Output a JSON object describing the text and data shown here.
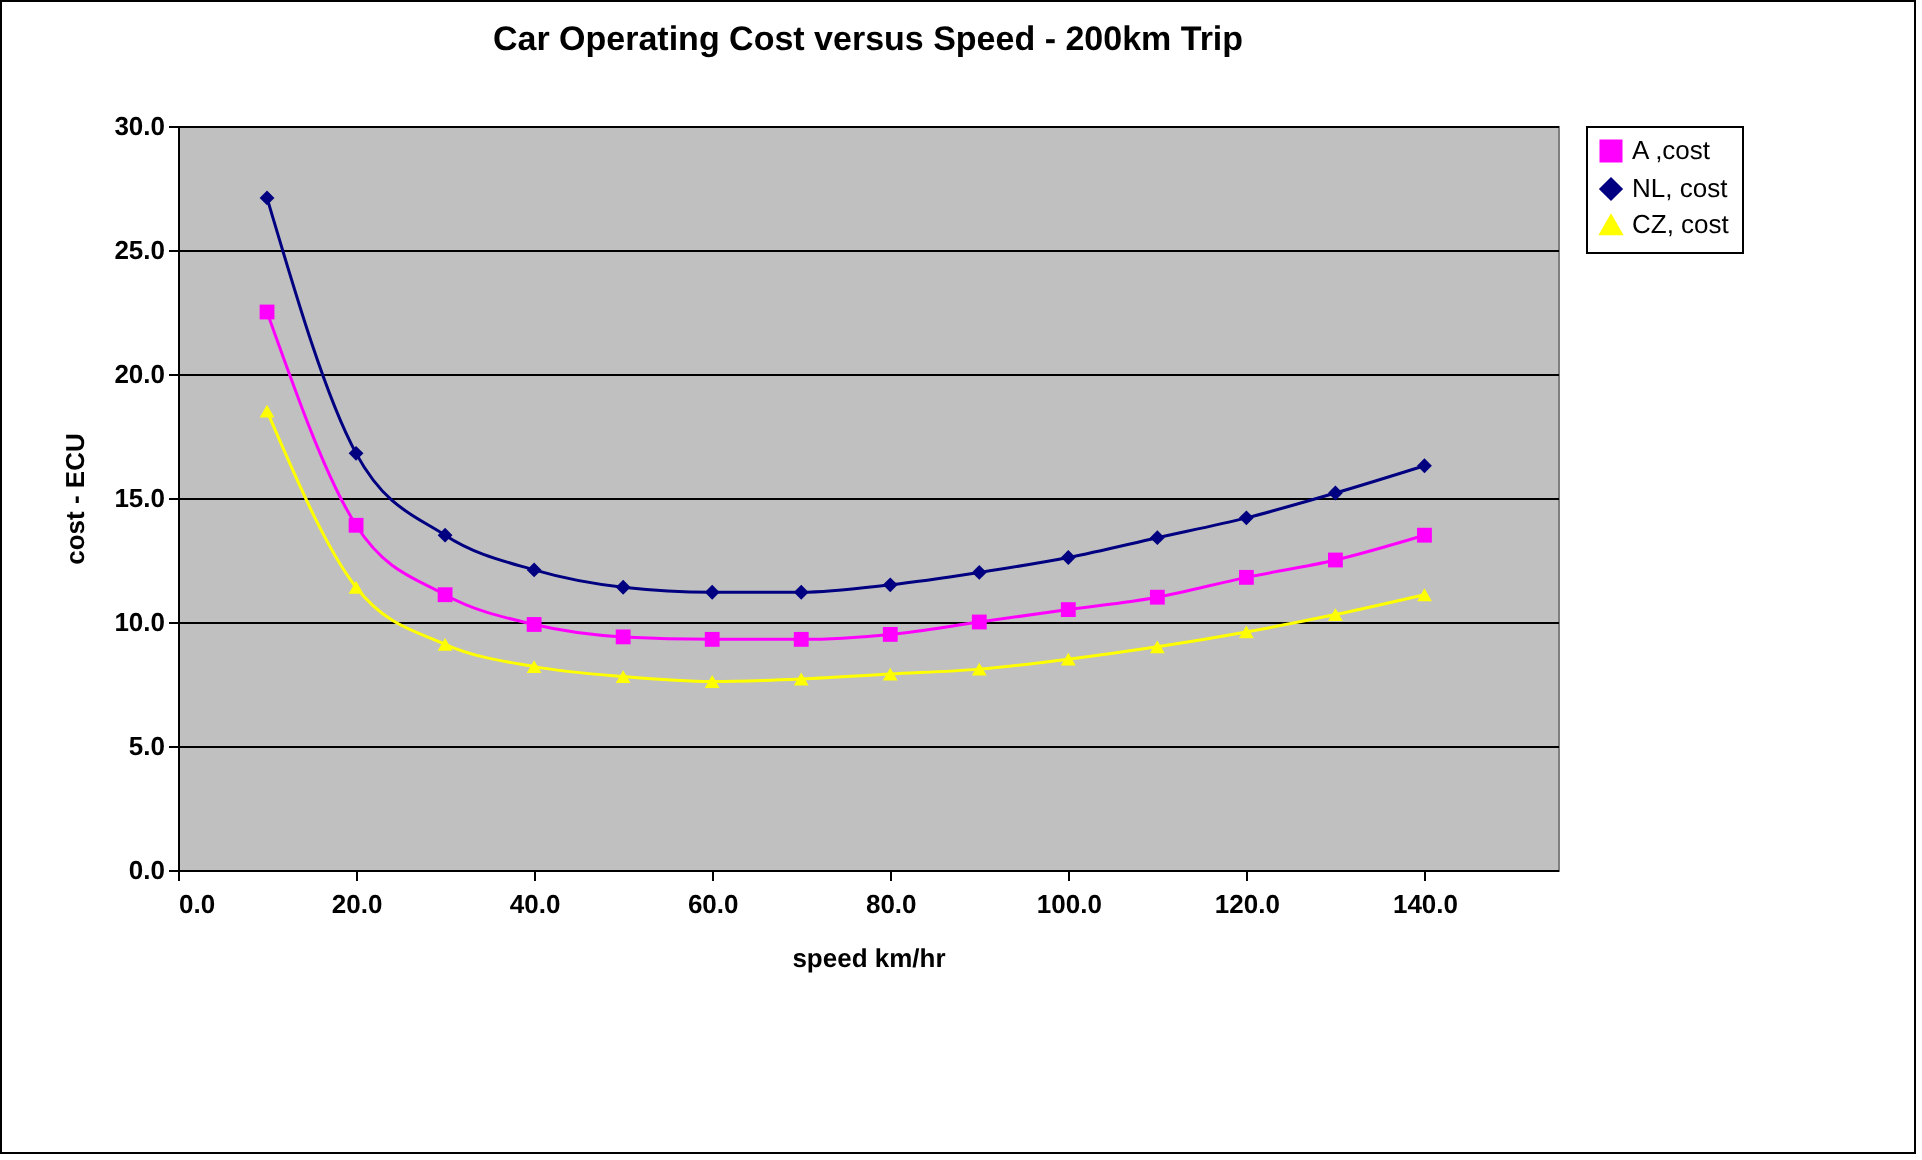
{
  "chart_data": {
    "type": "line",
    "title": "Car Operating Cost versus Speed - 200km Trip",
    "xlabel": "speed km/hr",
    "ylabel": "cost - ECU",
    "x": [
      10,
      20,
      30,
      40,
      50,
      60,
      70,
      80,
      90,
      100,
      110,
      120,
      130,
      140
    ],
    "series": [
      {
        "name": "A ,cost",
        "color": "#ff00ff",
        "marker": "square",
        "values": [
          22.5,
          13.9,
          11.1,
          9.9,
          9.4,
          9.3,
          9.3,
          9.5,
          10.0,
          10.5,
          11.0,
          11.8,
          12.5,
          13.5
        ]
      },
      {
        "name": "NL, cost",
        "color": "#000080",
        "marker": "diamond",
        "values": [
          27.1,
          16.8,
          13.5,
          12.1,
          11.4,
          11.2,
          11.2,
          11.5,
          12.0,
          12.6,
          13.4,
          14.2,
          15.2,
          16.3
        ]
      },
      {
        "name": "CZ, cost",
        "color": "#ffff00",
        "marker": "triangle",
        "values": [
          18.5,
          11.4,
          9.1,
          8.2,
          7.8,
          7.6,
          7.7,
          7.9,
          8.1,
          8.5,
          9.0,
          9.6,
          10.3,
          11.1
        ]
      }
    ],
    "xlim": [
      0,
      155
    ],
    "xticks": [
      {
        "value": 0,
        "label": "0.0"
      },
      {
        "value": 20,
        "label": "20.0"
      },
      {
        "value": 40,
        "label": "40.0"
      },
      {
        "value": 60,
        "label": "60.0"
      },
      {
        "value": 80,
        "label": "80.0"
      },
      {
        "value": 100,
        "label": "100.0"
      },
      {
        "value": 120,
        "label": "120.0"
      },
      {
        "value": 140,
        "label": "140.0"
      }
    ],
    "ylim": [
      0,
      30
    ],
    "yticks": [
      {
        "value": 0,
        "label": "0.0"
      },
      {
        "value": 5,
        "label": "5.0"
      },
      {
        "value": 10,
        "label": "10.0"
      },
      {
        "value": 15,
        "label": "15.0"
      },
      {
        "value": 20,
        "label": "20.0"
      },
      {
        "value": 25,
        "label": "25.0"
      },
      {
        "value": 30,
        "label": "30.0"
      }
    ],
    "grid": "y",
    "legend": "right",
    "line_style": "solid"
  }
}
